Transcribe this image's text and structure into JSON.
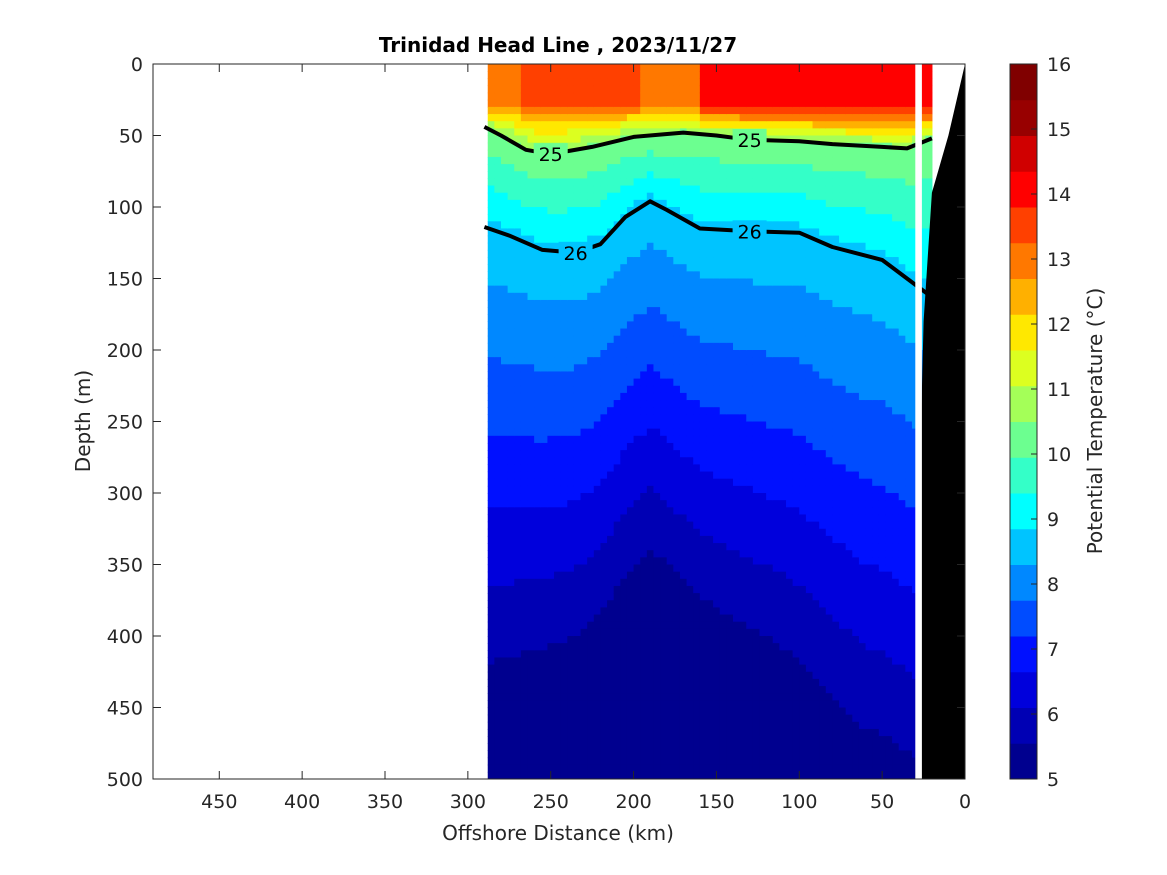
{
  "chart_data": {
    "type": "filled-contour",
    "title": "Trinidad Head Line , 2023/11/27",
    "xlabel": "Offshore Distance (km)",
    "ylabel": "Depth (m)",
    "colorbar_label": "Potential Temperature (°C)",
    "xlim": [
      490,
      0
    ],
    "ylim": [
      0,
      500
    ],
    "x_ticks": [
      "450",
      "400",
      "350",
      "300",
      "250",
      "200",
      "150",
      "100",
      "50",
      "0"
    ],
    "y_ticks": [
      "0",
      "50",
      "100",
      "150",
      "200",
      "250",
      "300",
      "350",
      "400",
      "450",
      "500"
    ],
    "colorbar_ticks": [
      "5",
      "6",
      "7",
      "8",
      "9",
      "10",
      "11",
      "12",
      "13",
      "14",
      "15",
      "16"
    ],
    "colorbar_range": [
      5,
      16
    ],
    "colormap": [
      "#00008f",
      "#0000b4",
      "#0000dc",
      "#0010ff",
      "#004cff",
      "#0088ff",
      "#00c4ff",
      "#00ffff",
      "#34ffc8",
      "#6cff90",
      "#a4ff58",
      "#dcff20",
      "#ffe800",
      "#ffb000",
      "#ff7800",
      "#ff4000",
      "#ff0000",
      "#d00000",
      "#980000",
      "#800000"
    ],
    "data_extent_km": [
      288,
      20
    ],
    "density_contours": [
      {
        "label": "25",
        "x": [
          290,
          280,
          265,
          250,
          225,
          200,
          170,
          150,
          130,
          100,
          80,
          50,
          35,
          20
        ],
        "depth": [
          44,
          50,
          60,
          63,
          58,
          51,
          48,
          50,
          53,
          54,
          56,
          58,
          59,
          52
        ]
      },
      {
        "label": "26",
        "x": [
          290,
          275,
          255,
          235,
          220,
          205,
          190,
          180,
          160,
          130,
          100,
          80,
          50,
          35,
          20
        ],
        "depth": [
          114,
          120,
          130,
          132,
          126,
          107,
          96,
          102,
          115,
          117,
          118,
          128,
          137,
          150,
          163
        ]
      }
    ],
    "bathymetry_x": [
      30,
      28,
      25,
      20,
      10,
      0
    ],
    "bathymetry_depth": [
      500,
      320,
      180,
      90,
      50,
      0
    ]
  }
}
